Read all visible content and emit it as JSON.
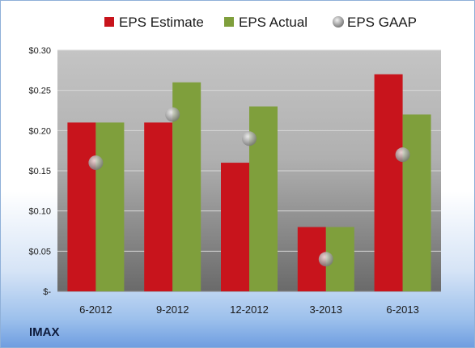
{
  "company": "IMAX",
  "chart_data": {
    "type": "bar",
    "categories": [
      "6-2012",
      "9-2012",
      "12-2012",
      "3-2013",
      "6-2013"
    ],
    "series": [
      {
        "name": "EPS Estimate",
        "kind": "bar",
        "color": "#c8141c",
        "values": [
          0.21,
          0.21,
          0.16,
          0.08,
          0.27
        ]
      },
      {
        "name": "EPS Actual",
        "kind": "bar",
        "color": "#7f9f3c",
        "values": [
          0.21,
          0.26,
          0.23,
          0.08,
          0.22
        ]
      },
      {
        "name": "EPS GAAP",
        "kind": "marker",
        "color": "#a8a8a8",
        "values": [
          0.16,
          0.22,
          0.19,
          0.04,
          0.17
        ]
      }
    ],
    "yticks": [
      {
        "value": 0.0,
        "label": "$-"
      },
      {
        "value": 0.05,
        "label": "$0.05"
      },
      {
        "value": 0.1,
        "label": "$0.10"
      },
      {
        "value": 0.15,
        "label": "$0.15"
      },
      {
        "value": 0.2,
        "label": "$0.20"
      },
      {
        "value": 0.25,
        "label": "$0.25"
      },
      {
        "value": 0.3,
        "label": "$0.30"
      }
    ],
    "ylim": [
      0,
      0.3
    ],
    "grid": true,
    "legend_position": "top"
  }
}
